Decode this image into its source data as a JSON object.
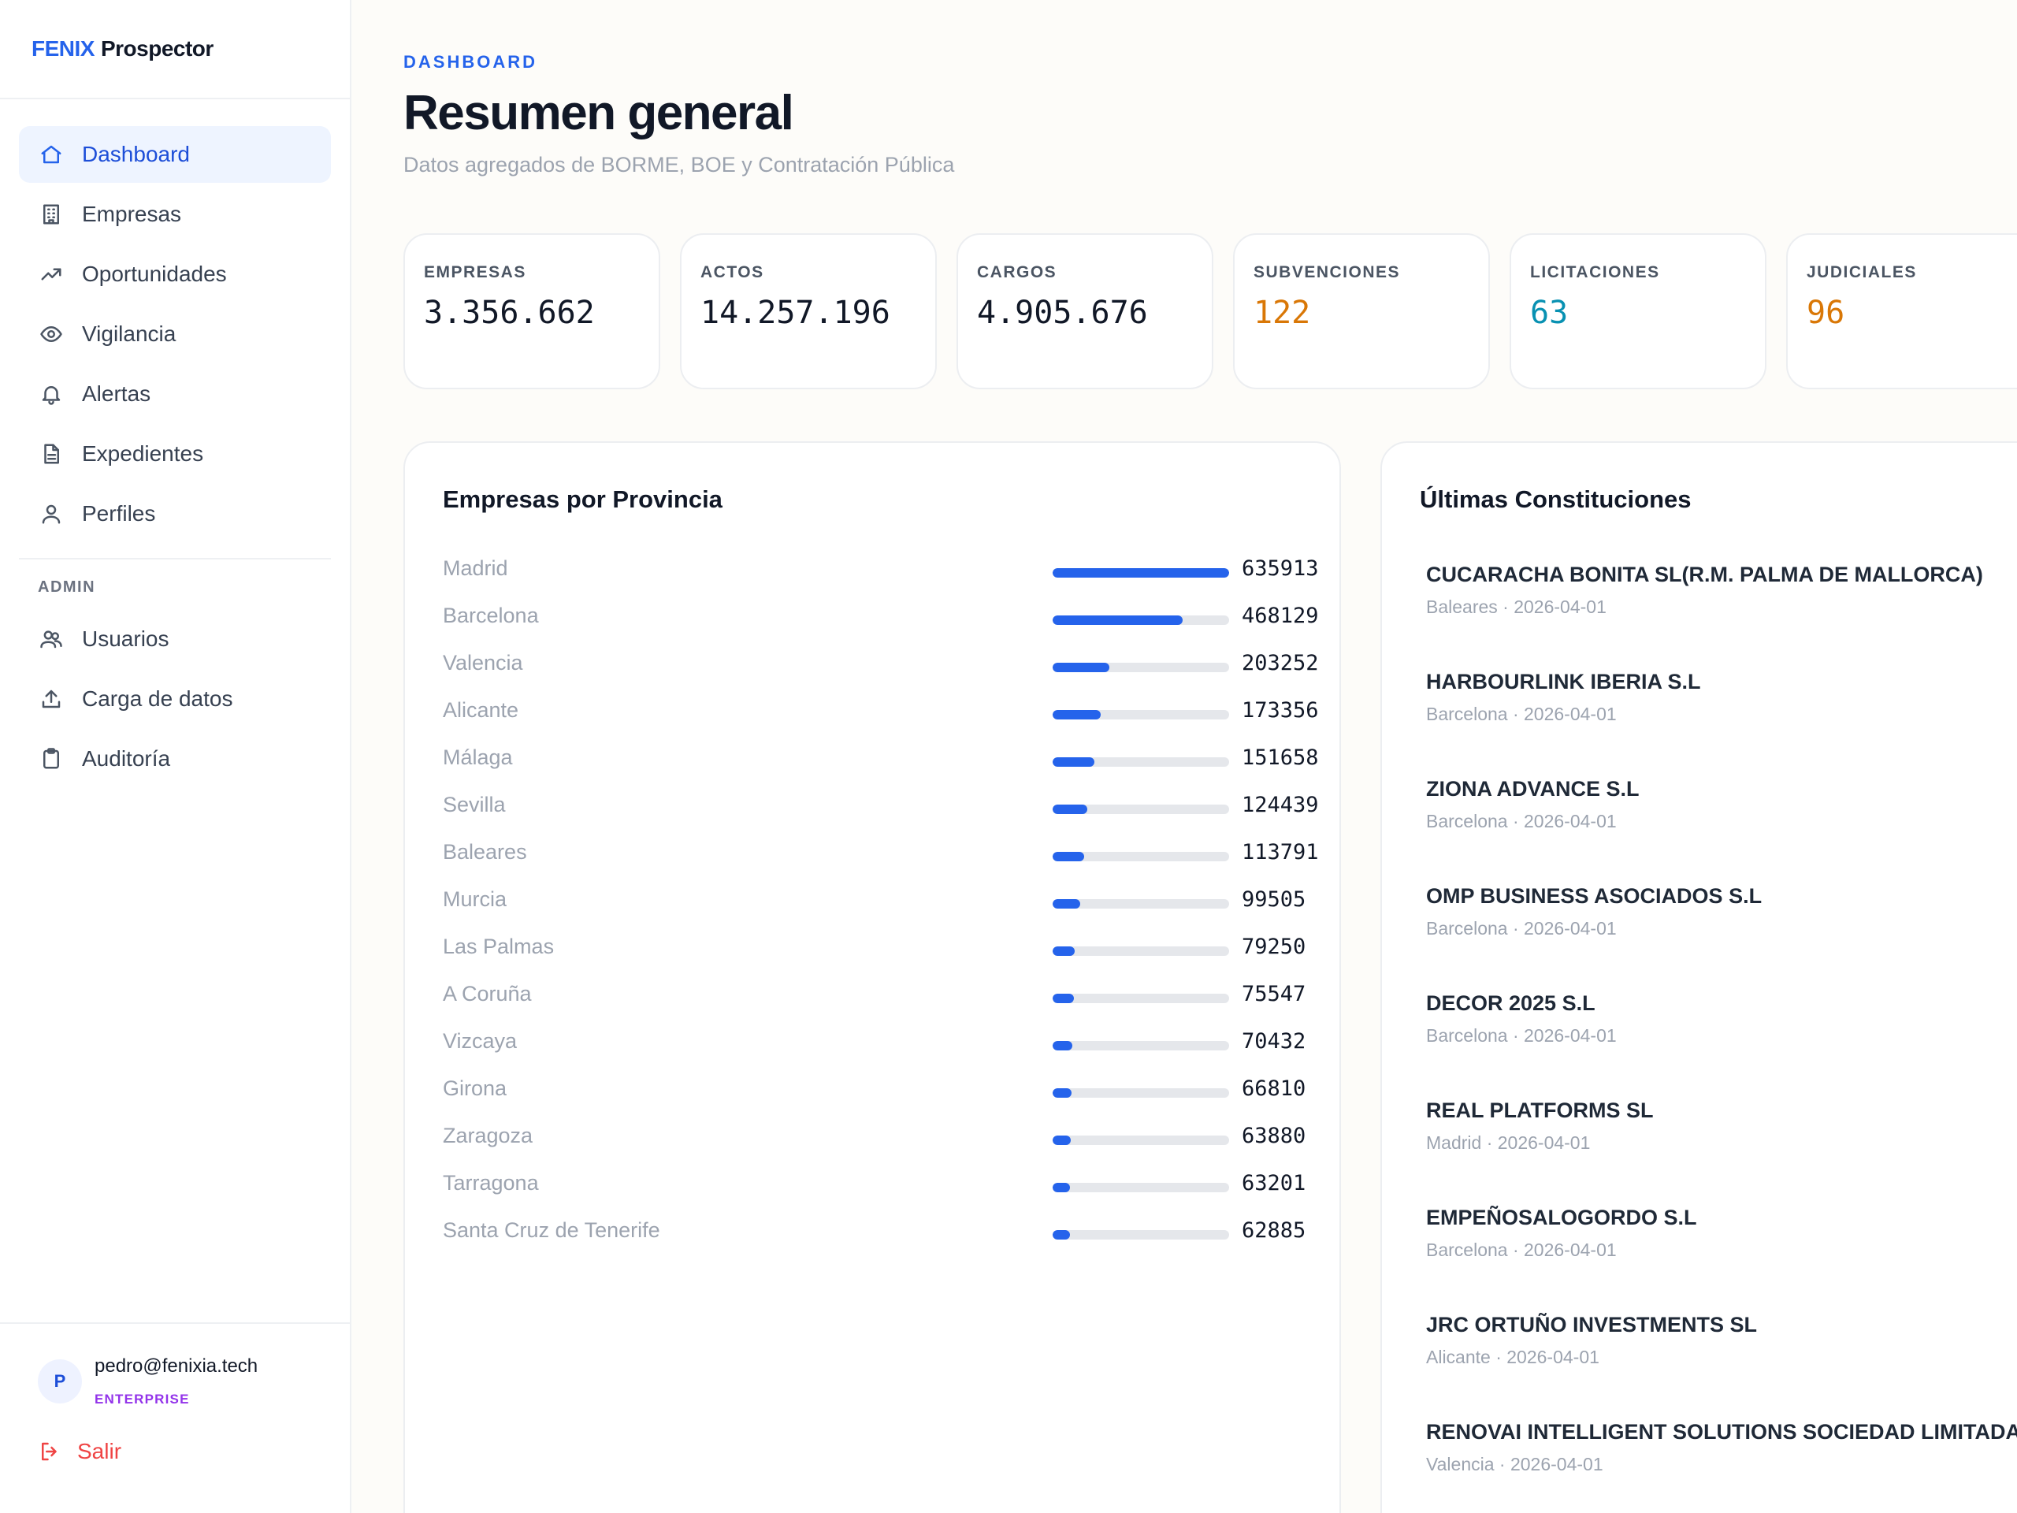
{
  "brand": {
    "part1": "FENIX",
    "part2": "Prospector"
  },
  "sidebar": {
    "items": [
      {
        "label": "Dashboard",
        "icon": "home-icon",
        "active": true
      },
      {
        "label": "Empresas",
        "icon": "building-icon"
      },
      {
        "label": "Oportunidades",
        "icon": "trending-up-icon"
      },
      {
        "label": "Vigilancia",
        "icon": "eye-icon"
      },
      {
        "label": "Alertas",
        "icon": "bell-icon"
      },
      {
        "label": "Expedientes",
        "icon": "file-icon"
      },
      {
        "label": "Perfiles",
        "icon": "user-icon"
      }
    ],
    "admin_label": "ADMIN",
    "admin_items": [
      {
        "label": "Usuarios",
        "icon": "users-icon"
      },
      {
        "label": "Carga de datos",
        "icon": "upload-icon"
      },
      {
        "label": "Auditoría",
        "icon": "clipboard-icon"
      }
    ],
    "user": {
      "initial": "P",
      "email": "pedro@fenixia.tech",
      "plan": "ENTERPRISE"
    },
    "logout_label": "Salir"
  },
  "header": {
    "eyebrow": "DASHBOARD",
    "title": "Resumen general",
    "subtitle": "Datos agregados de BORME, BOE y Contratación Pública"
  },
  "stats": [
    {
      "label": "EMPRESAS",
      "value": "3.356.662",
      "color": "#111827"
    },
    {
      "label": "ACTOS",
      "value": "14.257.196",
      "color": "#111827"
    },
    {
      "label": "CARGOS",
      "value": "4.905.676",
      "color": "#111827"
    },
    {
      "label": "SUBVENCIONES",
      "value": "122",
      "color": "#d97706"
    },
    {
      "label": "LICITACIONES",
      "value": "63",
      "color": "#0891b2"
    },
    {
      "label": "JUDICIALES",
      "value": "96",
      "color": "#d97706"
    }
  ],
  "provincias": {
    "title": "Empresas por Provincia",
    "rows": [
      {
        "name": "Madrid",
        "value": 635913
      },
      {
        "name": "Barcelona",
        "value": 468129
      },
      {
        "name": "Valencia",
        "value": 203252
      },
      {
        "name": "Alicante",
        "value": 173356
      },
      {
        "name": "Málaga",
        "value": 151658
      },
      {
        "name": "Sevilla",
        "value": 124439
      },
      {
        "name": "Baleares",
        "value": 113791
      },
      {
        "name": "Murcia",
        "value": 99505
      },
      {
        "name": "Las Palmas",
        "value": 79250
      },
      {
        "name": "A Coruña",
        "value": 75547
      },
      {
        "name": "Vizcaya",
        "value": 70432
      },
      {
        "name": "Girona",
        "value": 66810
      },
      {
        "name": "Zaragoza",
        "value": 63880
      },
      {
        "name": "Tarragona",
        "value": 63201
      },
      {
        "name": "Santa Cruz de Tenerife",
        "value": 62885
      }
    ]
  },
  "constituciones": {
    "title": "Últimas Constituciones",
    "items": [
      {
        "name": "CUCARACHA BONITA SL(R.M. PALMA DE MALLORCA)",
        "meta": "Baleares · 2026-04-01"
      },
      {
        "name": "HARBOURLINK IBERIA S.L",
        "meta": "Barcelona · 2026-04-01"
      },
      {
        "name": "ZIONA ADVANCE S.L",
        "meta": "Barcelona · 2026-04-01"
      },
      {
        "name": "OMP BUSINESS ASOCIADOS S.L",
        "meta": "Barcelona · 2026-04-01"
      },
      {
        "name": "DECOR 2025 S.L",
        "meta": "Barcelona · 2026-04-01"
      },
      {
        "name": "REAL PLATFORMS SL",
        "meta": "Madrid · 2026-04-01"
      },
      {
        "name": "EMPEÑOSALOGORDO S.L",
        "meta": "Barcelona · 2026-04-01"
      },
      {
        "name": "JRC ORTUÑO INVESTMENTS SL",
        "meta": "Alicante · 2026-04-01"
      },
      {
        "name": "RENOVAI INTELLIGENT SOLUTIONS SOCIEDAD LIMITADA",
        "meta": "Valencia · 2026-04-01"
      }
    ]
  }
}
